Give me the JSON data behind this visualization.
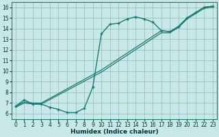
{
  "xlabel": "Humidex (Indice chaleur)",
  "bg_color": "#c8e8e8",
  "line_color": "#1a7a6e",
  "xlim": [
    -0.5,
    23.5
  ],
  "ylim": [
    5.5,
    16.5
  ],
  "xticks": [
    0,
    1,
    2,
    3,
    4,
    5,
    6,
    7,
    8,
    9,
    10,
    11,
    12,
    13,
    14,
    15,
    16,
    17,
    18,
    19,
    20,
    21,
    22,
    23
  ],
  "yticks": [
    6,
    7,
    8,
    9,
    10,
    11,
    12,
    13,
    14,
    15,
    16
  ],
  "curve_loop_x": [
    0,
    1,
    2,
    3,
    4,
    5,
    6,
    7,
    8,
    9,
    10,
    11,
    12,
    13,
    14,
    15,
    16,
    17,
    18,
    19,
    20,
    21,
    22,
    23
  ],
  "curve_loop_y": [
    6.7,
    7.3,
    6.9,
    6.9,
    6.6,
    6.4,
    6.1,
    6.1,
    6.5,
    8.5,
    13.5,
    14.4,
    14.5,
    14.9,
    15.1,
    14.9,
    14.6,
    13.8,
    13.7,
    14.2,
    15.0,
    15.5,
    16.0,
    16.1
  ],
  "line1_x": [
    0,
    1,
    2,
    3,
    10,
    17,
    18,
    19,
    20,
    21,
    22,
    23
  ],
  "line1_y": [
    6.7,
    7.1,
    7.0,
    7.0,
    10.1,
    13.8,
    13.7,
    14.2,
    15.0,
    15.5,
    16.0,
    16.1
  ],
  "line2_x": [
    0,
    1,
    2,
    3,
    10,
    17,
    18,
    19,
    20,
    21,
    22,
    23
  ],
  "line2_y": [
    6.6,
    7.0,
    6.9,
    6.9,
    9.9,
    13.6,
    13.6,
    14.1,
    14.9,
    15.4,
    15.9,
    16.0
  ]
}
